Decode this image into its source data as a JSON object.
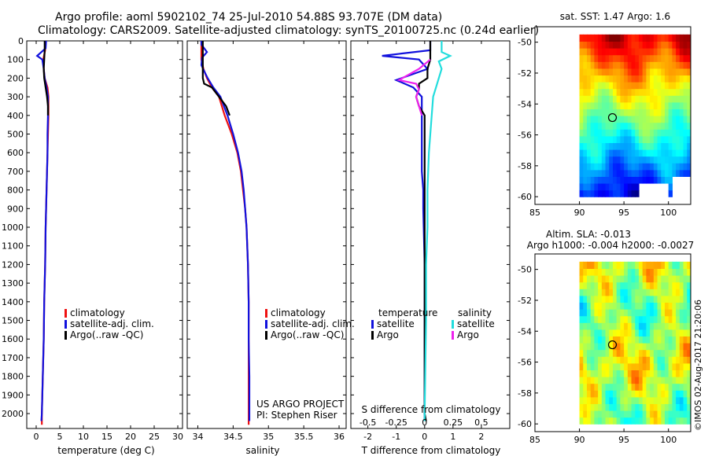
{
  "header": {
    "line1": "Argo profile: aoml 5902102_74 25-Jul-2010 54.88S 93.707E (DM data)",
    "line2": "Climatology: CARS2009. Satellite-adjusted climatology: synTS_20100725.nc (0.24d earlier)"
  },
  "colors": {
    "clim": "#ee1111",
    "satclim": "#1111dd",
    "argo": "#000000",
    "sat_s": "#22dddd",
    "argo_s": "#ee22ee"
  },
  "chart_data": [
    {
      "type": "line",
      "id": "temperature",
      "xlabel": "temperature (deg C)",
      "xlim": [
        -2,
        31
      ],
      "xticks": [
        0,
        5,
        10,
        15,
        20,
        25,
        30
      ],
      "ylim": [
        0,
        2080
      ],
      "yticks": [
        0,
        100,
        200,
        300,
        400,
        500,
        600,
        700,
        800,
        900,
        1000,
        1100,
        1200,
        1300,
        1400,
        1500,
        1600,
        1700,
        1800,
        1900,
        2000
      ],
      "legend": [
        "climatology",
        "satellite-adj. clim.",
        "Argo(..raw -QC)"
      ],
      "series": [
        {
          "name": "climatology",
          "color": "#ee1111",
          "points": [
            [
              1.9,
              0
            ],
            [
              1.9,
              50
            ],
            [
              1.5,
              100
            ],
            [
              1.6,
              150
            ],
            [
              1.8,
              200
            ],
            [
              2.4,
              250
            ],
            [
              2.6,
              300
            ],
            [
              2.6,
              400
            ],
            [
              2.5,
              500
            ],
            [
              2.4,
              600
            ],
            [
              2.3,
              700
            ],
            [
              2.2,
              800
            ],
            [
              2.1,
              900
            ],
            [
              2.0,
              1000
            ],
            [
              1.9,
              1200
            ],
            [
              1.7,
              1400
            ],
            [
              1.6,
              1600
            ],
            [
              1.4,
              1800
            ],
            [
              1.3,
              1900
            ],
            [
              1.2,
              2000
            ],
            [
              1.2,
              2060
            ]
          ]
        },
        {
          "name": "satellite-adj. clim.",
          "color": "#1111dd",
          "points": [
            [
              2.1,
              0
            ],
            [
              2.0,
              40
            ],
            [
              0.2,
              80
            ],
            [
              1.3,
              100
            ],
            [
              1.6,
              150
            ],
            [
              1.8,
              200
            ],
            [
              2.2,
              250
            ],
            [
              2.5,
              300
            ],
            [
              2.5,
              400
            ],
            [
              2.4,
              500
            ],
            [
              2.4,
              600
            ],
            [
              2.3,
              700
            ],
            [
              2.2,
              800
            ],
            [
              2.1,
              900
            ],
            [
              2.0,
              1000
            ],
            [
              1.9,
              1200
            ],
            [
              1.7,
              1400
            ],
            [
              1.6,
              1600
            ],
            [
              1.4,
              1800
            ],
            [
              1.3,
              1900
            ],
            [
              1.2,
              2000
            ],
            [
              1.1,
              2040
            ]
          ]
        },
        {
          "name": "Argo(..raw -QC)",
          "color": "#000000",
          "points": [
            [
              1.8,
              0
            ],
            [
              1.8,
              50
            ],
            [
              1.7,
              100
            ],
            [
              1.6,
              150
            ],
            [
              1.7,
              200
            ],
            [
              2.0,
              250
            ],
            [
              2.3,
              300
            ],
            [
              2.5,
              350
            ],
            [
              2.5,
              400
            ]
          ]
        }
      ]
    },
    {
      "type": "line",
      "id": "salinity",
      "xlabel": "salinity",
      "xlim": [
        33.85,
        36.1
      ],
      "xticks": [
        34,
        34.5,
        35,
        35.5,
        36
      ],
      "ylim": [
        0,
        2080
      ],
      "legend": [
        "climatology",
        "satellite-adj. clim.",
        "Argo(..raw -QC)"
      ],
      "series": [
        {
          "name": "climatology",
          "color": "#ee1111",
          "points": [
            [
              34.05,
              0
            ],
            [
              34.05,
              100
            ],
            [
              34.08,
              150
            ],
            [
              34.13,
              200
            ],
            [
              34.2,
              250
            ],
            [
              34.3,
              300
            ],
            [
              34.38,
              400
            ],
            [
              34.48,
              500
            ],
            [
              34.56,
              600
            ],
            [
              34.61,
              700
            ],
            [
              34.64,
              800
            ],
            [
              34.67,
              900
            ],
            [
              34.69,
              1000
            ],
            [
              34.71,
              1200
            ],
            [
              34.72,
              1400
            ],
            [
              34.72,
              1600
            ],
            [
              34.72,
              1800
            ],
            [
              34.72,
              2000
            ],
            [
              34.72,
              2060
            ]
          ]
        },
        {
          "name": "satellite-adj. clim.",
          "color": "#1111dd",
          "points": [
            [
              34.05,
              0
            ],
            [
              34.05,
              20
            ],
            [
              34.13,
              60
            ],
            [
              34.06,
              90
            ],
            [
              34.05,
              130
            ],
            [
              34.1,
              170
            ],
            [
              34.14,
              200
            ],
            [
              34.22,
              250
            ],
            [
              34.32,
              300
            ],
            [
              34.42,
              400
            ],
            [
              34.5,
              500
            ],
            [
              34.57,
              600
            ],
            [
              34.62,
              700
            ],
            [
              34.65,
              800
            ],
            [
              34.67,
              900
            ],
            [
              34.69,
              1000
            ],
            [
              34.71,
              1200
            ],
            [
              34.72,
              1400
            ],
            [
              34.72,
              1600
            ],
            [
              34.73,
              1800
            ],
            [
              34.73,
              2000
            ],
            [
              34.73,
              2040
            ]
          ]
        },
        {
          "name": "Argo(..raw -QC)",
          "color": "#000000",
          "points": [
            [
              34.07,
              0
            ],
            [
              34.07,
              150
            ],
            [
              34.07,
              200
            ],
            [
              34.09,
              230
            ],
            [
              34.2,
              250
            ],
            [
              34.3,
              300
            ],
            [
              34.4,
              350
            ],
            [
              34.45,
              400
            ]
          ]
        }
      ],
      "annotation": [
        "US ARGO PROJECT",
        "PI: Stephen Riser"
      ]
    },
    {
      "type": "line",
      "id": "difference",
      "xlabel": "T difference from climatology",
      "x2label": "S difference from climatology",
      "xlim": [
        -2.6,
        3.0
      ],
      "xticks": [
        -2,
        -1,
        0,
        1,
        2
      ],
      "x2ticks": [
        "-0.5",
        "-0.25",
        "0",
        "0.25",
        "0.5"
      ],
      "x2tickvals": [
        -2,
        -1,
        0,
        1,
        2
      ],
      "ylim": [
        0,
        2080
      ],
      "legend_headers": [
        "temperature",
        "salinity"
      ],
      "legend": [
        "satellite",
        "Argo",
        "satellite",
        "Argo"
      ],
      "series": [
        {
          "name": "temperature satellite",
          "color": "#1111dd",
          "points": [
            [
              0.2,
              0
            ],
            [
              0.2,
              50
            ],
            [
              -1.5,
              80
            ],
            [
              -0.2,
              100
            ],
            [
              0.1,
              150
            ],
            [
              -1.0,
              210
            ],
            [
              -0.4,
              250
            ],
            [
              -0.1,
              300
            ],
            [
              -0.1,
              400
            ],
            [
              -0.1,
              500
            ],
            [
              -0.1,
              600
            ],
            [
              -0.1,
              700
            ],
            [
              -0.05,
              800
            ],
            [
              -0.05,
              900
            ],
            [
              0,
              1200
            ],
            [
              0,
              1400
            ],
            [
              0,
              1600
            ],
            [
              0,
              1800
            ],
            [
              0,
              2000
            ],
            [
              0,
              2040
            ]
          ]
        },
        {
          "name": "temperature Argo",
          "color": "#000000",
          "points": [
            [
              0.2,
              0
            ],
            [
              0.2,
              100
            ],
            [
              0.1,
              150
            ],
            [
              0.1,
              200
            ],
            [
              -0.2,
              230
            ],
            [
              -0.2,
              260
            ],
            [
              -0.3,
              300
            ],
            [
              -0.2,
              350
            ],
            [
              0,
              400
            ],
            [
              0,
              500
            ],
            [
              0,
              1000
            ],
            [
              0,
              1500
            ],
            [
              0,
              2000
            ],
            [
              0.05,
              2040
            ]
          ]
        },
        {
          "name": "salinity satellite",
          "color": "#22dddd",
          "points": [
            [
              0.6,
              0
            ],
            [
              0.6,
              60
            ],
            [
              0.9,
              80
            ],
            [
              0.5,
              110
            ],
            [
              0.6,
              150
            ],
            [
              0.4,
              250
            ],
            [
              0.3,
              300
            ],
            [
              0.25,
              400
            ],
            [
              0.2,
              500
            ],
            [
              0.15,
              600
            ],
            [
              0.1,
              800
            ],
            [
              0.1,
              1000
            ],
            [
              0.05,
              1200
            ],
            [
              0.05,
              1500
            ],
            [
              0,
              2000
            ],
            [
              0,
              2040
            ]
          ]
        },
        {
          "name": "salinity Argo",
          "color": "#ee22ee",
          "points": [
            [
              0.2,
              100
            ],
            [
              -0.2,
              150
            ],
            [
              -0.9,
              210
            ],
            [
              -0.3,
              230
            ],
            [
              -0.2,
              260
            ],
            [
              -0.3,
              300
            ],
            [
              -0.2,
              350
            ],
            [
              -0.1,
              400
            ]
          ]
        }
      ]
    },
    {
      "type": "heatmap",
      "id": "sst_map",
      "title": "sat. SST: 1.47 Argo: 1.6",
      "xlim": [
        85,
        102.5
      ],
      "ylim": [
        -60.5,
        -49
      ],
      "xticks": [
        85,
        90,
        95,
        100
      ],
      "yticks": [
        -50,
        -52,
        -54,
        -56,
        -58,
        -60
      ],
      "data_lon": [
        90,
        102.5
      ],
      "data_lat": [
        -60,
        -49.5
      ],
      "marker": [
        93.707,
        -54.88
      ]
    },
    {
      "type": "heatmap",
      "id": "sla_map",
      "title1": "Altim. SLA: -0.013",
      "title2": "Argo h1000: -0.004 h2000: -0.0027",
      "xlim": [
        85,
        102.5
      ],
      "ylim": [
        -60.5,
        -49
      ],
      "xticks": [
        85,
        90,
        95,
        100
      ],
      "yticks": [
        -50,
        -52,
        -54,
        -56,
        -58,
        -60
      ],
      "data_lon": [
        90,
        102.5
      ],
      "data_lat": [
        -60,
        -49.5
      ],
      "marker": [
        93.707,
        -54.88
      ]
    }
  ],
  "footer": {
    "imos_label": "©IMOS 02-Aug-2017 21:20:06"
  }
}
